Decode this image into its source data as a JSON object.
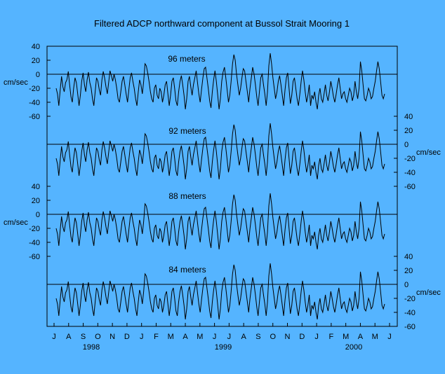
{
  "chart_data": {
    "type": "line",
    "title": "Filtered ADCP northward component at Bussol Strait Mooring 1",
    "ylabel": "cm/sec",
    "ylim": [
      -60,
      40
    ],
    "yticks": [
      "40",
      "20",
      "0",
      "-20",
      "-40",
      "-60"
    ],
    "months": [
      "J",
      "A",
      "S",
      "O",
      "N",
      "D",
      "J",
      "F",
      "M",
      "A",
      "M",
      "J",
      "J",
      "A",
      "S",
      "O",
      "N",
      "D",
      "J",
      "F",
      "M",
      "A",
      "M",
      "J"
    ],
    "years": [
      "1998",
      "1999",
      "2000"
    ],
    "x_start": "1998-07-01",
    "x_end": "2000-06-01",
    "grid": false,
    "legend": "none",
    "series": [
      {
        "name": "96 meters",
        "values": [
          -20,
          -28,
          -45,
          -22,
          -3,
          -18,
          -25,
          -12,
          -8,
          4,
          -15,
          -32,
          -40,
          -20,
          -5,
          -12,
          -28,
          -45,
          -30,
          -10,
          2,
          -15,
          -25,
          -8,
          3,
          -12,
          -20,
          -35,
          -45,
          -25,
          -5,
          -10,
          -22,
          -30,
          -8,
          4,
          -5,
          -18,
          -28,
          -12,
          5,
          -2,
          -10,
          0,
          -8,
          -20,
          -35,
          -40,
          -25,
          -10,
          -3,
          -15,
          -28,
          -40,
          -22,
          -5,
          2,
          -10,
          -20,
          -35,
          -45,
          -25,
          -8,
          -15,
          -28,
          -10,
          15,
          12,
          2,
          -10,
          -25,
          -35,
          -40,
          -20,
          -15,
          -30,
          -35,
          -20,
          -25,
          -40,
          -30,
          -15,
          -10,
          -28,
          -45,
          -30,
          -10,
          -5,
          -20,
          -38,
          -45,
          -25,
          -10,
          -2,
          -15,
          -30,
          -50,
          -35,
          -10,
          -3,
          -18,
          -30,
          -15,
          -5,
          5,
          -12,
          -28,
          -40,
          -22,
          -5,
          8,
          10,
          -5,
          -20,
          -38,
          -48,
          -25,
          -8,
          5,
          -10,
          -30,
          -50,
          -35,
          -10,
          3,
          10,
          -5,
          -22,
          -40,
          -30,
          -10,
          15,
          28,
          20,
          0,
          -15,
          -30,
          -20,
          -5,
          8,
          5,
          -10,
          -25,
          -40,
          -20,
          -5,
          10,
          0,
          -15,
          -32,
          -45,
          -25,
          -5,
          0,
          -15,
          -28,
          -45,
          -25,
          12,
          30,
          15,
          -5,
          -20,
          -35,
          -25,
          -10,
          -2,
          -15,
          -30,
          -45,
          -22,
          -5,
          2,
          -20,
          -42,
          -30,
          -10,
          -5,
          -20,
          -35,
          -45,
          -28,
          -10,
          5,
          -8,
          -25,
          -40,
          -30,
          -15,
          -45,
          -30,
          -35,
          -25,
          -40,
          -50,
          -30,
          -20,
          -35,
          -40,
          -28,
          -15,
          -30,
          -38,
          -25,
          -10,
          -20,
          -32,
          -40,
          -28,
          -15,
          -5,
          -20,
          -35,
          -28,
          -25,
          -35,
          -40,
          -30,
          -20,
          -25,
          -38,
          -30,
          -10,
          -25,
          -35,
          -20,
          18,
          5,
          -15,
          -35,
          -38,
          -30,
          -20,
          -25,
          -35,
          -32,
          -20,
          -10,
          5,
          18,
          8,
          -10,
          -30,
          -35,
          -28
        ]
      },
      {
        "name": "92 meters",
        "values": [
          -20,
          -28,
          -45,
          -22,
          -3,
          -18,
          -25,
          -12,
          -8,
          4,
          -15,
          -32,
          -40,
          -20,
          -5,
          -12,
          -28,
          -45,
          -30,
          -10,
          2,
          -15,
          -25,
          -8,
          3,
          -12,
          -20,
          -35,
          -45,
          -25,
          -5,
          -10,
          -22,
          -30,
          -8,
          4,
          -5,
          -18,
          -28,
          -12,
          5,
          -2,
          -10,
          0,
          -8,
          -20,
          -35,
          -40,
          -25,
          -10,
          -3,
          -15,
          -28,
          -40,
          -22,
          -5,
          2,
          -10,
          -20,
          -35,
          -45,
          -25,
          -8,
          -15,
          -28,
          -10,
          15,
          12,
          2,
          -10,
          -25,
          -35,
          -40,
          -20,
          -15,
          -30,
          -35,
          -20,
          -25,
          -40,
          -30,
          -15,
          -10,
          -28,
          -45,
          -30,
          -10,
          -5,
          -20,
          -38,
          -45,
          -25,
          -10,
          -2,
          -15,
          -30,
          -50,
          -35,
          -10,
          -3,
          -18,
          -30,
          -15,
          -5,
          5,
          -12,
          -28,
          -40,
          -22,
          -5,
          8,
          10,
          -5,
          -20,
          -38,
          -48,
          -25,
          -8,
          5,
          -10,
          -30,
          -50,
          -35,
          -10,
          3,
          10,
          -5,
          -22,
          -40,
          -30,
          -10,
          15,
          28,
          20,
          0,
          -15,
          -30,
          -20,
          -5,
          8,
          5,
          -10,
          -25,
          -40,
          -20,
          -5,
          10,
          0,
          -15,
          -32,
          -45,
          -25,
          -5,
          0,
          -15,
          -28,
          -45,
          -25,
          12,
          30,
          15,
          -5,
          -20,
          -35,
          -25,
          -10,
          -2,
          -15,
          -30,
          -45,
          -22,
          -5,
          2,
          -20,
          -42,
          -30,
          -10,
          -5,
          -20,
          -35,
          -45,
          -28,
          -10,
          5,
          -8,
          -25,
          -40,
          -30,
          -15,
          -45,
          -30,
          -35,
          -25,
          -40,
          -50,
          -30,
          -20,
          -35,
          -40,
          -28,
          -15,
          -30,
          -38,
          -25,
          -10,
          -20,
          -32,
          -40,
          -28,
          -15,
          -5,
          -20,
          -35,
          -28,
          -25,
          -35,
          -40,
          -30,
          -20,
          -25,
          -38,
          -30,
          -10,
          -25,
          -35,
          -20,
          18,
          5,
          -15,
          -35,
          -38,
          -30,
          -20,
          -25,
          -35,
          -32,
          -20,
          -10,
          5,
          18,
          8,
          -10,
          -30,
          -35,
          -28
        ]
      },
      {
        "name": "88 meters",
        "values": [
          -20,
          -28,
          -45,
          -22,
          -3,
          -18,
          -25,
          -12,
          -8,
          4,
          -15,
          -32,
          -40,
          -20,
          -5,
          -12,
          -28,
          -45,
          -30,
          -10,
          2,
          -15,
          -25,
          -8,
          3,
          -12,
          -20,
          -35,
          -45,
          -25,
          -5,
          -10,
          -22,
          -30,
          -8,
          4,
          -5,
          -18,
          -28,
          -12,
          5,
          -2,
          -10,
          0,
          -8,
          -20,
          -35,
          -40,
          -25,
          -10,
          -3,
          -15,
          -28,
          -40,
          -22,
          -5,
          2,
          -10,
          -20,
          -35,
          -45,
          -25,
          -8,
          -15,
          -28,
          -10,
          15,
          12,
          2,
          -10,
          -25,
          -35,
          -40,
          -20,
          -15,
          -30,
          -35,
          -20,
          -25,
          -40,
          -30,
          -15,
          -10,
          -28,
          -45,
          -30,
          -10,
          -5,
          -20,
          -38,
          -45,
          -25,
          -10,
          -2,
          -15,
          -30,
          -50,
          -35,
          -10,
          -3,
          -18,
          -30,
          -15,
          -5,
          5,
          -12,
          -28,
          -40,
          -22,
          -5,
          8,
          10,
          -5,
          -20,
          -38,
          -48,
          -25,
          -8,
          5,
          -10,
          -30,
          -50,
          -35,
          -10,
          3,
          10,
          -5,
          -22,
          -40,
          -30,
          -10,
          15,
          28,
          20,
          0,
          -15,
          -30,
          -20,
          -5,
          8,
          5,
          -10,
          -25,
          -40,
          -20,
          -5,
          10,
          0,
          -15,
          -32,
          -45,
          -25,
          -5,
          0,
          -15,
          -28,
          -45,
          -25,
          12,
          30,
          15,
          -5,
          -20,
          -35,
          -25,
          -10,
          -2,
          -15,
          -30,
          -45,
          -22,
          -5,
          2,
          -20,
          -42,
          -30,
          -10,
          -5,
          -20,
          -35,
          -45,
          -28,
          -10,
          5,
          -8,
          -25,
          -40,
          -30,
          -15,
          -45,
          -30,
          -35,
          -25,
          -40,
          -50,
          -30,
          -20,
          -35,
          -40,
          -28,
          -15,
          -30,
          -38,
          -25,
          -10,
          -20,
          -32,
          -40,
          -28,
          -15,
          -5,
          -20,
          -35,
          -28,
          -25,
          -35,
          -40,
          -30,
          -20,
          -25,
          -38,
          -30,
          -10,
          -25,
          -35,
          -20,
          18,
          5,
          -15,
          -35,
          -38,
          -30,
          -20,
          -25,
          -35,
          -32,
          -20,
          -10,
          5,
          18,
          8,
          -10,
          -30,
          -35,
          -28
        ]
      },
      {
        "name": "84 meters",
        "values": [
          -20,
          -28,
          -45,
          -22,
          -3,
          -18,
          -25,
          -12,
          -8,
          4,
          -15,
          -32,
          -40,
          -20,
          -5,
          -12,
          -28,
          -45,
          -30,
          -10,
          2,
          -15,
          -25,
          -8,
          3,
          -12,
          -20,
          -35,
          -45,
          -25,
          -5,
          -10,
          -22,
          -30,
          -8,
          4,
          -5,
          -18,
          -28,
          -12,
          5,
          -2,
          -10,
          0,
          -8,
          -20,
          -35,
          -40,
          -25,
          -10,
          -3,
          -15,
          -28,
          -40,
          -22,
          -5,
          2,
          -10,
          -20,
          -35,
          -45,
          -25,
          -8,
          -15,
          -28,
          -10,
          15,
          12,
          2,
          -10,
          -25,
          -35,
          -40,
          -20,
          -15,
          -30,
          -35,
          -20,
          -25,
          -40,
          -30,
          -15,
          -10,
          -28,
          -45,
          -30,
          -10,
          -5,
          -20,
          -38,
          -45,
          -25,
          -10,
          -2,
          -15,
          -30,
          -50,
          -35,
          -10,
          -3,
          -18,
          -30,
          -15,
          -5,
          5,
          -12,
          -28,
          -40,
          -22,
          -5,
          8,
          10,
          -5,
          -20,
          -38,
          -48,
          -25,
          -8,
          5,
          -10,
          -30,
          -50,
          -35,
          -10,
          3,
          10,
          -5,
          -22,
          -40,
          -30,
          -10,
          15,
          28,
          20,
          0,
          -15,
          -30,
          -20,
          -5,
          8,
          5,
          -10,
          -25,
          -40,
          -20,
          -5,
          10,
          0,
          -15,
          -32,
          -45,
          -25,
          -5,
          0,
          -15,
          -28,
          -45,
          -25,
          12,
          30,
          15,
          -5,
          -20,
          -35,
          -25,
          -10,
          -2,
          -15,
          -30,
          -45,
          -22,
          -5,
          2,
          -20,
          -42,
          -30,
          -10,
          -5,
          -20,
          -35,
          -45,
          -28,
          -10,
          5,
          -8,
          -25,
          -40,
          -30,
          -15,
          -45,
          -30,
          -35,
          -25,
          -40,
          -50,
          -30,
          -20,
          -35,
          -40,
          -28,
          -15,
          -30,
          -38,
          -25,
          -10,
          -20,
          -32,
          -40,
          -28,
          -15,
          -5,
          -20,
          -35,
          -28,
          -25,
          -35,
          -40,
          -30,
          -20,
          -25,
          -38,
          -30,
          -10,
          -25,
          -35,
          -20,
          18,
          5,
          -15,
          -35,
          -38,
          -30,
          -20,
          -25,
          -35,
          -32,
          -20,
          -10,
          5,
          18,
          8,
          -10,
          -30,
          -35,
          -28
        ]
      }
    ],
    "colors": {
      "background": "#55b4ff",
      "line": "#000000",
      "text": "#000000"
    }
  }
}
